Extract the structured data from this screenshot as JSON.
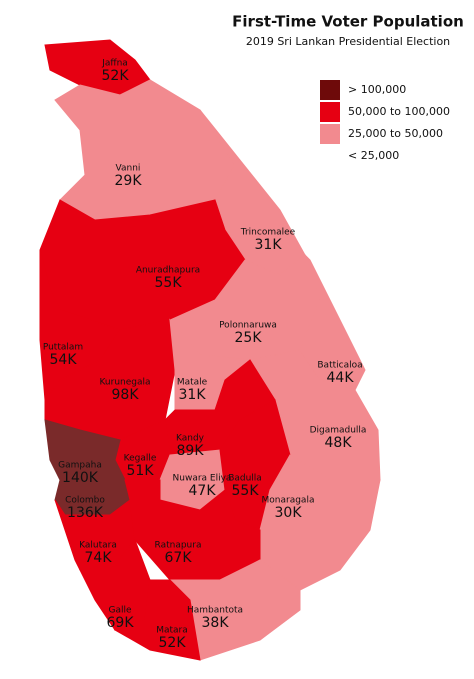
{
  "title": "First-Time Voter Population",
  "subtitle": "2019 Sri Lankan Presidential Election",
  "legend": [
    {
      "label": "> 100,000",
      "color": "#6e0a0a"
    },
    {
      "label": "50,000 to 100,000",
      "color": "#e60012"
    },
    {
      "label": "25,000 to 50,000",
      "color": "#f28a8f"
    },
    {
      "label": "< 25,000",
      "color": "#ffffff"
    }
  ],
  "districts": [
    {
      "name": "Jaffna",
      "value": "52K",
      "color": "#e60012"
    },
    {
      "name": "Vanni",
      "value": "29K",
      "color": "#f28a8f"
    },
    {
      "name": "Trincomalee",
      "value": "31K",
      "color": "#f28a8f"
    },
    {
      "name": "Anuradhapura",
      "value": "55K",
      "color": "#e60012"
    },
    {
      "name": "Polonnaruwa",
      "value": "25K",
      "color": "#f28a8f"
    },
    {
      "name": "Puttalam",
      "value": "54K",
      "color": "#e60012"
    },
    {
      "name": "Kurunegala",
      "value": "98K",
      "color": "#e60012"
    },
    {
      "name": "Matale",
      "value": "31K",
      "color": "#f28a8f"
    },
    {
      "name": "Batticaloa",
      "value": "44K",
      "color": "#f28a8f"
    },
    {
      "name": "Digamadulla",
      "value": "48K",
      "color": "#f28a8f"
    },
    {
      "name": "Kandy",
      "value": "89K",
      "color": "#e60012"
    },
    {
      "name": "Kegalle",
      "value": "51K",
      "color": "#e60012"
    },
    {
      "name": "Gampaha",
      "value": "140K",
      "color": "#7a2a2a"
    },
    {
      "name": "Nuwara Eliya",
      "value": "47K",
      "color": "#f28a8f"
    },
    {
      "name": "Badulla",
      "value": "55K",
      "color": "#e60012"
    },
    {
      "name": "Colombo",
      "value": "136K",
      "color": "#7a2a2a"
    },
    {
      "name": "Monaragala",
      "value": "30K",
      "color": "#f28a8f"
    },
    {
      "name": "Kalutara",
      "value": "74K",
      "color": "#e60012"
    },
    {
      "name": "Ratnapura",
      "value": "67K",
      "color": "#e60012"
    },
    {
      "name": "Galle",
      "value": "69K",
      "color": "#e60012"
    },
    {
      "name": "Hambantota",
      "value": "38K",
      "color": "#f28a8f"
    },
    {
      "name": "Matara",
      "value": "52K",
      "color": "#e60012"
    }
  ]
}
